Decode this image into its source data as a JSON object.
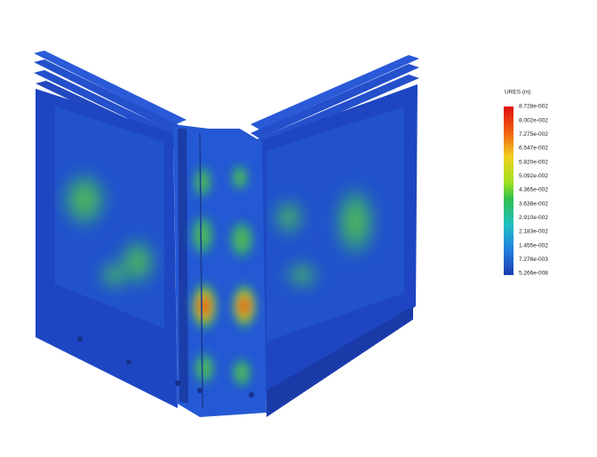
{
  "legend": {
    "title": "URES (in)",
    "labels": [
      "8.728e-002",
      "8.002e-002",
      "7.275e-002",
      "6.547e-002",
      "5.820e-002",
      "5.092e-002",
      "4.365e-002",
      "3.638e-002",
      "2.910e-002",
      "2.183e-002",
      "1.455e-002",
      "7.276e-003",
      "5.266e-008"
    ]
  }
}
